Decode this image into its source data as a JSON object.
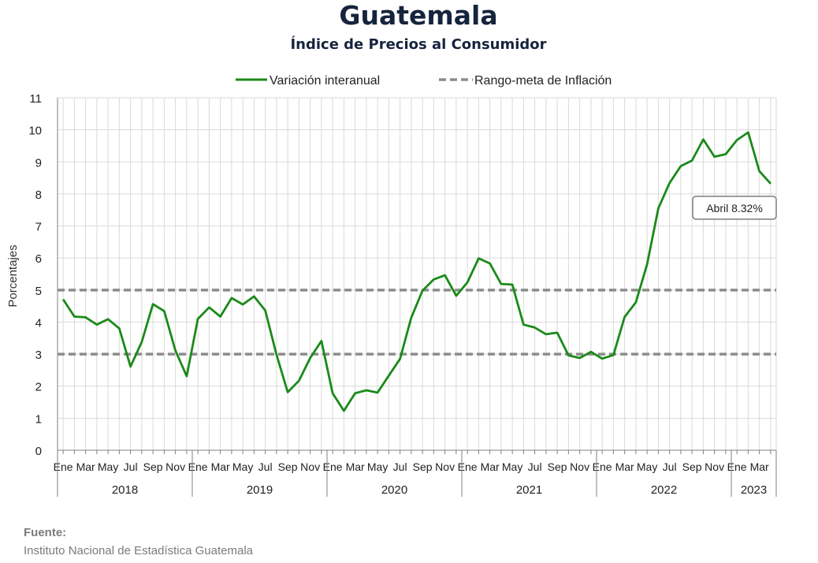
{
  "header": {
    "title": "Guatemala",
    "subtitle": "Índice de Precios al Consumidor"
  },
  "source": {
    "label": "Fuente:",
    "text": "Instituto Nacional de Estadística Guatemala"
  },
  "colors": {
    "series": "#1a8a1a",
    "target": "#8c8c8c",
    "grid": "#d9d9d9",
    "title": "#16243d"
  },
  "chart_data": {
    "type": "line",
    "title": "Guatemala",
    "subtitle": "Índice de Precios al Consumidor",
    "ylabel": "Porcentajes",
    "ylim": [
      0,
      11
    ],
    "yticks": [
      0,
      1,
      2,
      3,
      4,
      5,
      6,
      7,
      8,
      9,
      10,
      11
    ],
    "grid": true,
    "legend_position": "top",
    "month_tick_labels": [
      "Ene",
      "Mar",
      "May",
      "Jul",
      "Sep",
      "Nov"
    ],
    "years": [
      "2018",
      "2019",
      "2020",
      "2021",
      "2022",
      "2023"
    ],
    "x_start": "2018-01",
    "x_end": "2023-04",
    "series": [
      {
        "name": "Variación interanual",
        "values": [
          4.71,
          4.17,
          4.15,
          3.92,
          4.09,
          3.8,
          2.61,
          3.38,
          4.56,
          4.34,
          3.11,
          2.31,
          4.1,
          4.46,
          4.17,
          4.75,
          4.55,
          4.8,
          4.36,
          2.98,
          1.81,
          2.17,
          2.88,
          3.41,
          1.78,
          1.23,
          1.78,
          1.87,
          1.8,
          2.33,
          2.85,
          4.14,
          4.98,
          5.33,
          5.46,
          4.82,
          5.24,
          5.99,
          5.83,
          5.19,
          5.17,
          3.92,
          3.83,
          3.62,
          3.67,
          2.96,
          2.88,
          3.07,
          2.86,
          2.97,
          4.16,
          4.62,
          5.8,
          7.55,
          8.34,
          8.87,
          9.04,
          9.7,
          9.16,
          9.24,
          9.68,
          9.92,
          8.71,
          8.32
        ]
      },
      {
        "name": "Rango-meta de Inflación",
        "style": "dashed",
        "lower": 3,
        "upper": 5
      }
    ],
    "annotations": [
      {
        "text": "Abril 8.32%",
        "x": "2023-04",
        "y": 8.32
      }
    ]
  }
}
